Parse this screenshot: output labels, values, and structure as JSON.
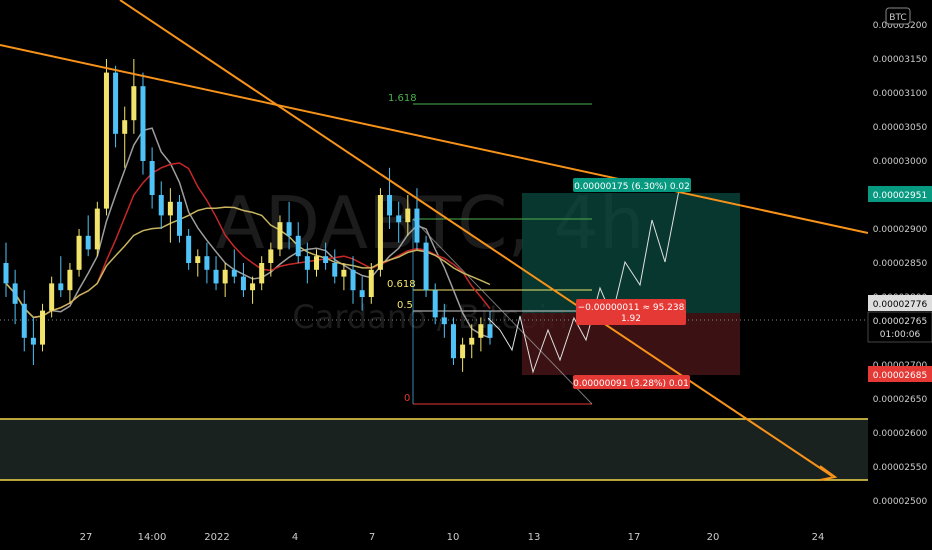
{
  "chart_data": {
    "type": "candlestick",
    "symbol_watermark": "ADABTC, 4h",
    "subtitle_watermark": "Cardano / Bitcoin",
    "price_unit_badge": "BTC",
    "y_ticks": [
      "0.00003200",
      "0.00003150",
      "0.00003100",
      "0.00003050",
      "0.00003000",
      "0.00002950",
      "0.00002900",
      "0.00002850",
      "0.00002800",
      "0.00002750",
      "0.00002700",
      "0.00002650",
      "0.00002600",
      "0.00002550",
      "0.00002500"
    ],
    "x_ticks": [
      "27",
      "14:00",
      "2022",
      "4",
      "7",
      "10",
      "13",
      "17",
      "20",
      "24"
    ],
    "current_price": "0.00002765",
    "countdown": "01:00:06",
    "price_tags": {
      "target": "0.00002951",
      "upper": "0.00002776",
      "stop": "0.00002685"
    },
    "fib_levels": [
      {
        "label": "1.618",
        "price": 3.1e-05
      },
      {
        "label": "0.618",
        "price": 2.8e-05
      },
      {
        "label": "0.5",
        "price": 2.77e-05
      },
      {
        "label": "0",
        "price": 2.64e-05
      }
    ],
    "position": {
      "target_label": "0.00000175 (6.30%) 0.02",
      "stop_label": "0.00000091 (3.28%) 0.01",
      "center_label_1": "−0.00000011 ≈ 95.238",
      "center_label_2": "1.92"
    },
    "colors": {
      "up": "#f2e46b",
      "down": "#4fc3f7",
      "trendline": "#f7931a",
      "support": "#f2d64b",
      "target_zone": "#0a4a3d",
      "stop_zone": "#4a1518",
      "ma_fast": "#c62828",
      "ma_slow": "#c8b560",
      "ma_grey": "#9e9e9e"
    },
    "candles": [
      [
        2850,
        2880,
        2800,
        2820
      ],
      [
        2820,
        2840,
        2760,
        2790
      ],
      [
        2790,
        2810,
        2720,
        2740
      ],
      [
        2740,
        2770,
        2700,
        2730
      ],
      [
        2730,
        2790,
        2720,
        2780
      ],
      [
        2780,
        2830,
        2770,
        2820
      ],
      [
        2820,
        2860,
        2800,
        2810
      ],
      [
        2810,
        2850,
        2790,
        2840
      ],
      [
        2840,
        2900,
        2830,
        2890
      ],
      [
        2890,
        2920,
        2860,
        2870
      ],
      [
        2870,
        2940,
        2860,
        2930
      ],
      [
        2930,
        3150,
        2920,
        3130
      ],
      [
        3130,
        3140,
        3020,
        3040
      ],
      [
        3040,
        3080,
        2990,
        3060
      ],
      [
        3060,
        3150,
        3040,
        3110
      ],
      [
        3110,
        3130,
        2980,
        3000
      ],
      [
        3000,
        3020,
        2930,
        2950
      ],
      [
        2950,
        2970,
        2900,
        2920
      ],
      [
        2920,
        2960,
        2880,
        2940
      ],
      [
        2940,
        2950,
        2880,
        2890
      ],
      [
        2890,
        2900,
        2840,
        2850
      ],
      [
        2850,
        2870,
        2830,
        2860
      ],
      [
        2860,
        2880,
        2820,
        2840
      ],
      [
        2840,
        2860,
        2810,
        2820
      ],
      [
        2820,
        2850,
        2800,
        2840
      ],
      [
        2840,
        2870,
        2820,
        2830
      ],
      [
        2830,
        2850,
        2800,
        2810
      ],
      [
        2810,
        2830,
        2790,
        2820
      ],
      [
        2820,
        2860,
        2810,
        2850
      ],
      [
        2850,
        2880,
        2830,
        2870
      ],
      [
        2870,
        2920,
        2860,
        2910
      ],
      [
        2910,
        2940,
        2870,
        2890
      ],
      [
        2890,
        2910,
        2850,
        2860
      ],
      [
        2860,
        2880,
        2820,
        2840
      ],
      [
        2840,
        2870,
        2830,
        2860
      ],
      [
        2860,
        2880,
        2840,
        2850
      ],
      [
        2850,
        2870,
        2820,
        2830
      ],
      [
        2830,
        2850,
        2810,
        2840
      ],
      [
        2840,
        2860,
        2790,
        2810
      ],
      [
        2810,
        2830,
        2780,
        2800
      ],
      [
        2800,
        2850,
        2790,
        2840
      ],
      [
        2840,
        2960,
        2830,
        2950
      ],
      [
        2950,
        2990,
        2900,
        2920
      ],
      [
        2920,
        2940,
        2880,
        2910
      ],
      [
        2910,
        2950,
        2890,
        2930
      ],
      [
        2930,
        2960,
        2870,
        2880
      ],
      [
        2880,
        2890,
        2800,
        2810
      ],
      [
        2810,
        2820,
        2760,
        2770
      ],
      [
        2770,
        2790,
        2740,
        2760
      ],
      [
        2760,
        2770,
        2700,
        2710
      ],
      [
        2710,
        2740,
        2690,
        2730
      ],
      [
        2730,
        2760,
        2710,
        2740
      ],
      [
        2740,
        2770,
        2720,
        2760
      ],
      [
        2760,
        2780,
        2730,
        2740
      ]
    ]
  }
}
